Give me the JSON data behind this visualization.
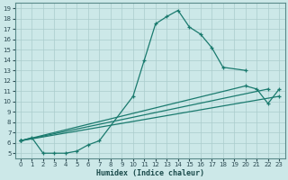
{
  "xlabel": "Humidex (Indice chaleur)",
  "background_color": "#cce8e8",
  "grid_color": "#aacccc",
  "line_color": "#1a7a6e",
  "xlim": [
    -0.5,
    23.5
  ],
  "ylim": [
    4.5,
    19.5
  ],
  "xticks": [
    0,
    1,
    2,
    3,
    4,
    5,
    6,
    7,
    8,
    9,
    10,
    11,
    12,
    13,
    14,
    15,
    16,
    17,
    18,
    19,
    20,
    21,
    22,
    23
  ],
  "yticks": [
    5,
    6,
    7,
    8,
    9,
    10,
    11,
    12,
    13,
    14,
    15,
    16,
    17,
    18,
    19
  ],
  "main_curve": {
    "x": [
      0,
      1,
      2,
      3,
      4,
      5,
      6,
      7,
      10,
      11,
      12,
      13,
      14,
      15,
      16,
      17,
      18,
      20
    ],
    "y": [
      6.2,
      6.5,
      5.0,
      5.0,
      5.0,
      5.2,
      5.8,
      6.2,
      10.5,
      14.0,
      17.5,
      18.2,
      18.8,
      17.2,
      16.5,
      15.2,
      13.3,
      13.0
    ]
  },
  "diag_line1": {
    "x": [
      0,
      23
    ],
    "y": [
      6.2,
      10.5
    ]
  },
  "diag_line2": {
    "x": [
      0,
      22
    ],
    "y": [
      6.2,
      11.2
    ]
  },
  "end_curve": {
    "x": [
      0,
      20,
      21,
      22,
      23
    ],
    "y": [
      6.2,
      11.5,
      11.2,
      9.8,
      11.2
    ]
  }
}
